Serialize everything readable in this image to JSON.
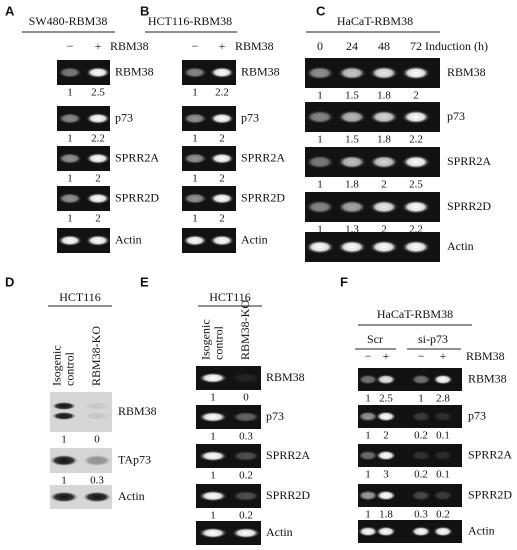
{
  "panels": [
    {
      "letter": "A",
      "title": "SW480-RBM38",
      "lanes": [
        [
          "−"
        ],
        [
          "+"
        ]
      ],
      "lane_header": "RBM38",
      "rows": [
        {
          "label": "RBM38",
          "values": [
            1,
            2.5
          ]
        },
        {
          "label": "p73",
          "values": [
            1,
            2.2
          ]
        },
        {
          "label": "SPRR2A",
          "values": [
            1,
            2
          ]
        },
        {
          "label": "SPRR2D",
          "values": [
            1,
            2
          ]
        },
        {
          "label": "Actin"
        }
      ]
    },
    {
      "letter": "B",
      "title": "HCT116-RBM38",
      "lanes": [
        [
          "−"
        ],
        [
          "+"
        ]
      ],
      "lane_header": "RBM38",
      "rows": [
        {
          "label": "RBM38",
          "values": [
            1,
            2.2
          ]
        },
        {
          "label": "p73",
          "values": [
            1,
            2
          ]
        },
        {
          "label": "SPRR2A",
          "values": [
            1,
            2
          ]
        },
        {
          "label": "SPRR2D",
          "values": [
            1,
            2
          ]
        },
        {
          "label": "Actin"
        }
      ]
    },
    {
      "letter": "C",
      "title": "HaCaT-RBM38",
      "lanes": [
        [
          "0"
        ],
        [
          "24"
        ],
        [
          "48"
        ],
        [
          "72"
        ]
      ],
      "lane_header": "Induction (h)",
      "rows": [
        {
          "label": "RBM38",
          "values": [
            1,
            1.5,
            1.8,
            2
          ]
        },
        {
          "label": "p73",
          "values": [
            1,
            1.5,
            1.8,
            2.2
          ]
        },
        {
          "label": "SPRR2A",
          "values": [
            1,
            1.8,
            2,
            2.5
          ]
        },
        {
          "label": "SPRR2D",
          "values": [
            1,
            1.3,
            2,
            2.2
          ]
        },
        {
          "label": "Actin"
        }
      ]
    },
    {
      "letter": "D",
      "title": "HCT116",
      "lanes": [
        [
          "Isogenic",
          "control"
        ],
        [
          "RBM38-KO"
        ]
      ],
      "rows": [
        {
          "label": "RBM38",
          "values": [
            1,
            0
          ]
        },
        {
          "label": "TAp73",
          "values": [
            1,
            0.3
          ]
        },
        {
          "label": "Actin"
        }
      ]
    },
    {
      "letter": "E",
      "title": "HCT116",
      "lanes": [
        [
          "Isogenic",
          "control"
        ],
        [
          "RBM38-KO"
        ]
      ],
      "rows": [
        {
          "label": "RBM38",
          "values": [
            1,
            0
          ]
        },
        {
          "label": "p73",
          "values": [
            1,
            0.3
          ]
        },
        {
          "label": "SPRR2A",
          "values": [
            1,
            0.2
          ]
        },
        {
          "label": "SPRR2D",
          "values": [
            1,
            0.2
          ]
        },
        {
          "label": "Actin"
        }
      ]
    },
    {
      "letter": "F",
      "title": "HaCaT-RBM38",
      "groups": [
        "Scr",
        "si-p73"
      ],
      "lanes": [
        [
          "−"
        ],
        [
          "+"
        ],
        [
          "−"
        ],
        [
          "+"
        ]
      ],
      "lane_header": "RBM38",
      "rows": [
        {
          "label": "RBM38",
          "values": [
            1,
            2.5,
            1,
            2.8
          ]
        },
        {
          "label": "p73",
          "values": [
            1,
            2,
            0.2,
            0.1
          ]
        },
        {
          "label": "SPRR2A",
          "values": [
            1,
            3,
            0.2,
            0.1
          ]
        },
        {
          "label": "SPRR2D",
          "values": [
            1,
            1.8,
            0.3,
            0.2
          ]
        },
        {
          "label": "Actin"
        }
      ]
    }
  ]
}
